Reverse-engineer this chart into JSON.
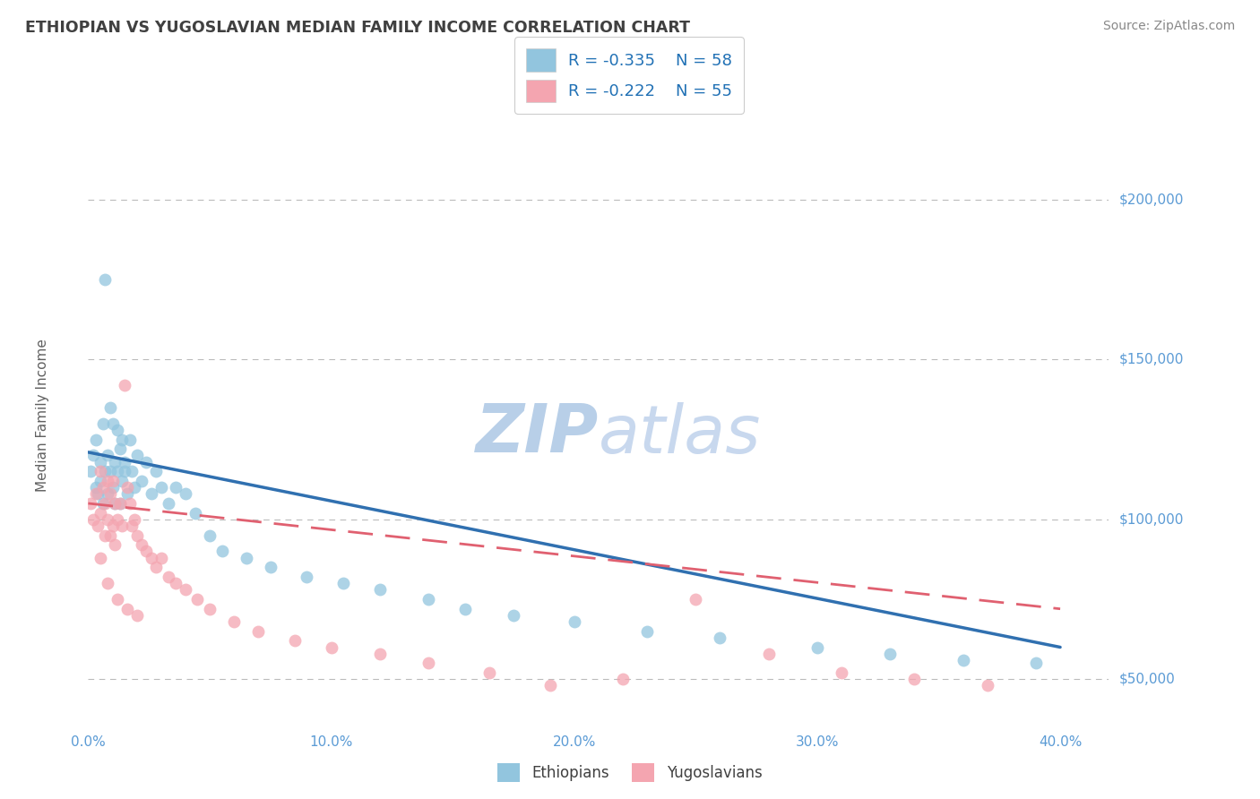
{
  "title": "ETHIOPIAN VS YUGOSLAVIAN MEDIAN FAMILY INCOME CORRELATION CHART",
  "source_text": "Source: ZipAtlas.com",
  "ylabel": "Median Family Income",
  "xlabel_ticks": [
    "0.0%",
    "10.0%",
    "20.0%",
    "30.0%",
    "40.0%"
  ],
  "ylabel_ticks": [
    50000,
    100000,
    150000,
    200000
  ],
  "ylabel_tick_labels": [
    "$50,000",
    "$100,000",
    "$150,000",
    "$200,000"
  ],
  "xlim": [
    0.0,
    0.42
  ],
  "ylim": [
    35000,
    230000
  ],
  "r_ethiopian": -0.335,
  "n_ethiopian": 58,
  "r_yugoslavian": -0.222,
  "n_yugoslavian": 55,
  "blue_color": "#92c5de",
  "pink_color": "#f4a5b0",
  "blue_line_color": "#3070b0",
  "pink_line_color": "#e06070",
  "title_color": "#404040",
  "tick_label_color": "#5b9bd5",
  "grid_color": "#bbbbbb",
  "watermark_color": "#d0dff0",
  "legend_text_color": "#2171b5",
  "eth_trend_x0": 0.0,
  "eth_trend_y0": 121000,
  "eth_trend_x1": 0.4,
  "eth_trend_y1": 60000,
  "yug_trend_x0": 0.0,
  "yug_trend_y0": 105000,
  "yug_trend_x1": 0.4,
  "yug_trend_y1": 72000,
  "ethiopian_x": [
    0.001,
    0.002,
    0.003,
    0.003,
    0.004,
    0.005,
    0.005,
    0.006,
    0.006,
    0.007,
    0.007,
    0.008,
    0.008,
    0.009,
    0.009,
    0.01,
    0.01,
    0.011,
    0.011,
    0.012,
    0.012,
    0.013,
    0.013,
    0.014,
    0.014,
    0.015,
    0.015,
    0.016,
    0.017,
    0.018,
    0.019,
    0.02,
    0.022,
    0.024,
    0.026,
    0.028,
    0.03,
    0.033,
    0.036,
    0.04,
    0.044,
    0.05,
    0.055,
    0.065,
    0.075,
    0.09,
    0.105,
    0.12,
    0.14,
    0.155,
    0.175,
    0.2,
    0.23,
    0.26,
    0.3,
    0.33,
    0.36,
    0.39
  ],
  "ethiopian_y": [
    115000,
    120000,
    110000,
    125000,
    108000,
    118000,
    112000,
    130000,
    105000,
    115000,
    175000,
    120000,
    108000,
    135000,
    115000,
    110000,
    130000,
    118000,
    105000,
    128000,
    115000,
    122000,
    105000,
    112000,
    125000,
    115000,
    118000,
    108000,
    125000,
    115000,
    110000,
    120000,
    112000,
    118000,
    108000,
    115000,
    110000,
    105000,
    110000,
    108000,
    102000,
    95000,
    90000,
    88000,
    85000,
    82000,
    80000,
    78000,
    75000,
    72000,
    70000,
    68000,
    65000,
    63000,
    60000,
    58000,
    56000,
    55000
  ],
  "yugoslavian_x": [
    0.001,
    0.002,
    0.003,
    0.004,
    0.005,
    0.005,
    0.006,
    0.007,
    0.007,
    0.008,
    0.008,
    0.009,
    0.009,
    0.01,
    0.01,
    0.011,
    0.011,
    0.012,
    0.013,
    0.014,
    0.015,
    0.016,
    0.017,
    0.018,
    0.019,
    0.02,
    0.022,
    0.024,
    0.026,
    0.028,
    0.03,
    0.033,
    0.036,
    0.04,
    0.045,
    0.05,
    0.06,
    0.07,
    0.085,
    0.1,
    0.12,
    0.14,
    0.165,
    0.19,
    0.22,
    0.25,
    0.28,
    0.31,
    0.34,
    0.37,
    0.005,
    0.008,
    0.012,
    0.016,
    0.02
  ],
  "yugoslavian_y": [
    105000,
    100000,
    108000,
    98000,
    115000,
    102000,
    110000,
    105000,
    95000,
    112000,
    100000,
    108000,
    95000,
    112000,
    98000,
    105000,
    92000,
    100000,
    105000,
    98000,
    142000,
    110000,
    105000,
    98000,
    100000,
    95000,
    92000,
    90000,
    88000,
    85000,
    88000,
    82000,
    80000,
    78000,
    75000,
    72000,
    68000,
    65000,
    62000,
    60000,
    58000,
    55000,
    52000,
    48000,
    50000,
    75000,
    58000,
    52000,
    50000,
    48000,
    88000,
    80000,
    75000,
    72000,
    70000
  ]
}
